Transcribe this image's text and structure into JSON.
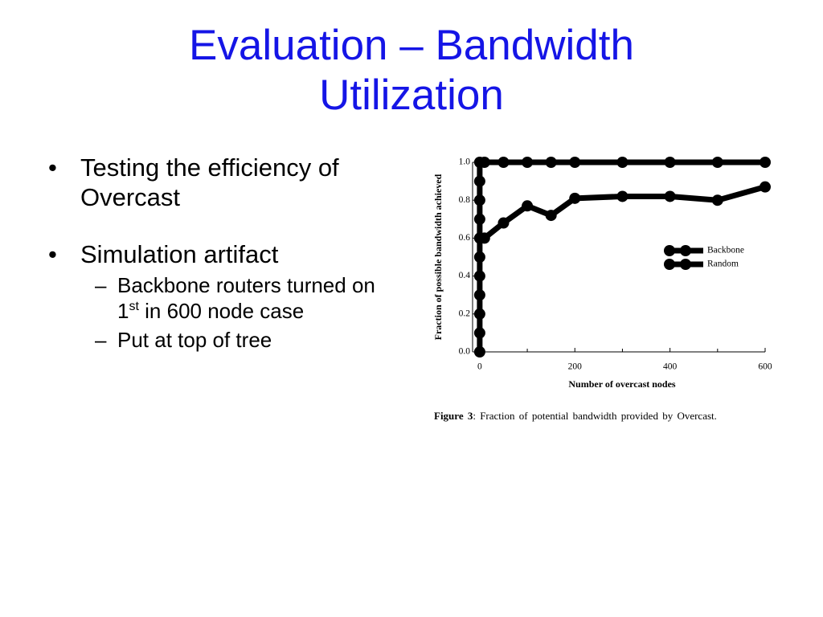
{
  "title": "Evaluation – Bandwidth Utilization",
  "bullets": [
    {
      "text": "Testing the efficiency of Overcast"
    },
    {
      "text": "Simulation artifact",
      "sub": [
        {
          "before": "Backbone routers turned on 1",
          "sup": "st",
          "after": " in 600 node case"
        },
        {
          "before": "Put at top of tree"
        }
      ]
    }
  ],
  "chart_data": {
    "type": "line",
    "xlabel": "Number of overcast nodes",
    "ylabel": "Fraction of possible bandwidth achieved",
    "xlim": [
      -15,
      600
    ],
    "ylim": [
      0,
      1
    ],
    "xticks": [
      0,
      200,
      400,
      600
    ],
    "xminorticks": [
      100,
      300,
      500
    ],
    "yticks": [
      {
        "value": 0,
        "label": "0.0"
      },
      0.2,
      0.4,
      0.6,
      0.8,
      {
        "value": 1,
        "label": "1.0"
      }
    ],
    "legend": "right",
    "series": [
      {
        "name": "Backbone",
        "color": "#000000",
        "x": [
          0,
          0,
          0,
          0,
          0,
          0,
          0,
          0,
          0,
          0,
          0,
          10,
          50,
          100,
          150,
          200,
          300,
          400,
          500,
          600
        ],
        "values": [
          0,
          0.1,
          0.2,
          0.3,
          0.4,
          0.5,
          0.6,
          0.7,
          0.8,
          0.9,
          1,
          1,
          1,
          1,
          1,
          1,
          1,
          1,
          1,
          1
        ]
      },
      {
        "name": "Random",
        "color": "#000000",
        "x": [
          0,
          10,
          50,
          100,
          150,
          200,
          300,
          400,
          500,
          600
        ],
        "values": [
          0.6,
          0.6,
          0.68,
          0.77,
          0.72,
          0.81,
          0.82,
          0.82,
          0.8,
          0.87
        ]
      }
    ]
  },
  "caption": {
    "label": "Figure 3",
    "text": ": Fraction of potential bandwidth provided by Overcast."
  }
}
